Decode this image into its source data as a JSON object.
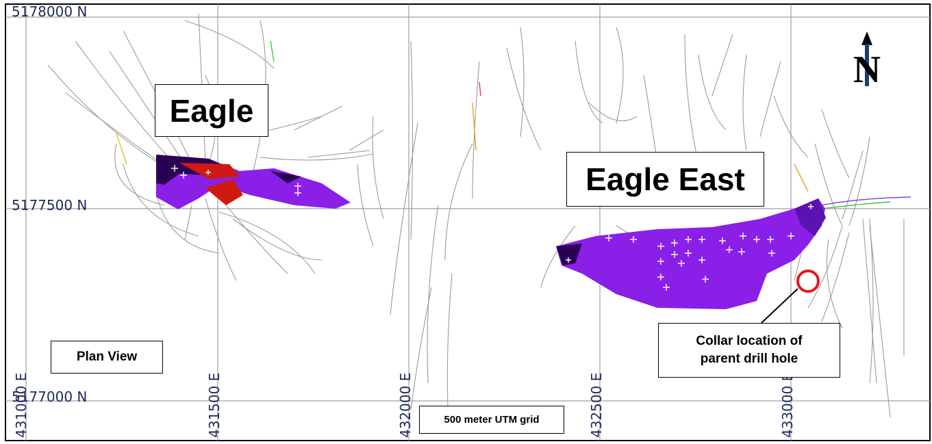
{
  "map": {
    "colors": {
      "frame": "#000000",
      "grid": "#9aa0a8",
      "body": "#8a1fe8",
      "body_dark": "#2a0055",
      "ore": "#d01a10",
      "trace": "#9a9a9a",
      "circle": "#e8141c",
      "label": "#1f2a5c"
    },
    "grid_labels": {
      "n_top": "5178000 N",
      "n_mid": "5177500 N",
      "n_bottom": "5177000 N",
      "e1": "431000 E",
      "e2": "431500 E",
      "e3": "432000 E",
      "e4": "432500 E",
      "e5": "433000 E"
    },
    "labels": {
      "eagle": "Eagle",
      "eagle_east": "Eagle East",
      "plan_view": "Plan View",
      "grid_note": "500 meter UTM grid",
      "collar_line1": "Collar location of",
      "collar_line2": "parent drill hole"
    },
    "north_arrow": {
      "letter": "N",
      "icon": "north-arrow-icon"
    }
  }
}
